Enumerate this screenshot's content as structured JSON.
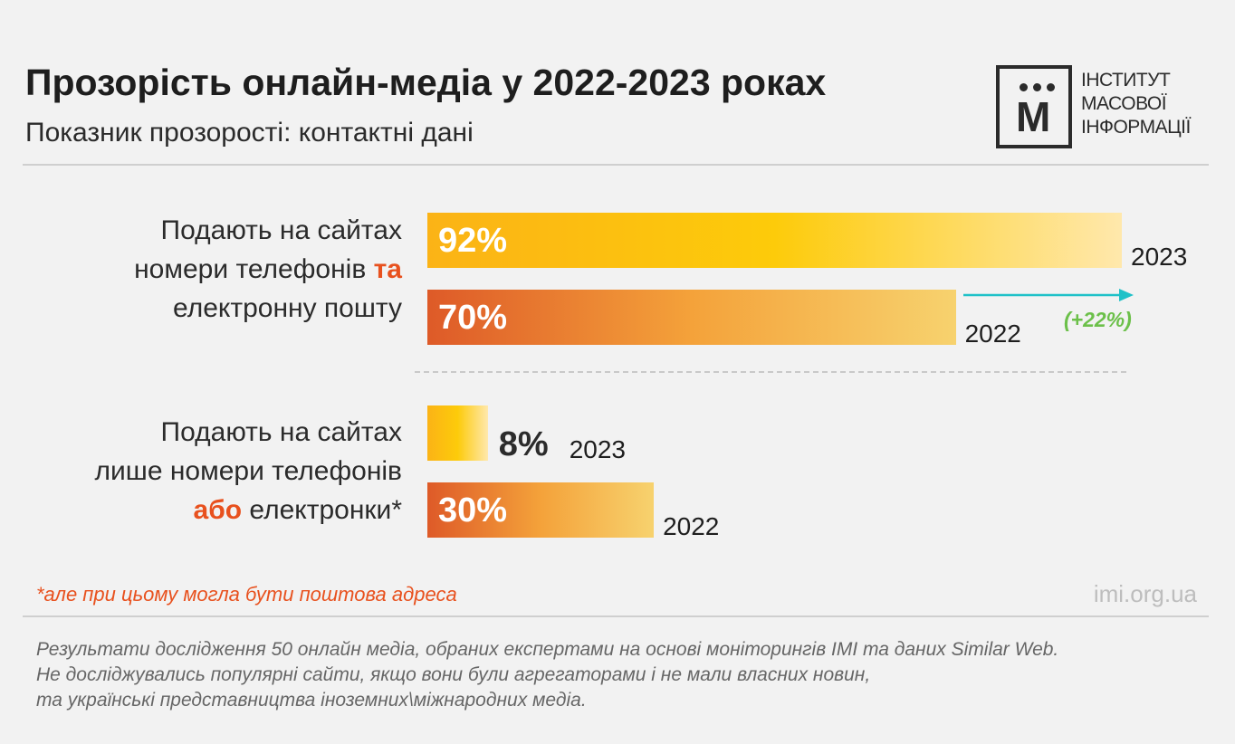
{
  "title": "Прозорість онлайн-медіа у 2022-2023 роках",
  "subtitle": "Показник прозорості: контактні дані",
  "logo": {
    "letter": "М",
    "lines": [
      "ІНСТИТУТ",
      "МАСОВОЇ",
      "ІНФОРМАЦІЇ"
    ]
  },
  "chart_data": {
    "type": "bar",
    "orientation": "horizontal",
    "categories": [
      {
        "label_lines": [
          {
            "text": "Подають на сайтах"
          },
          {
            "text": "номери телефонів ",
            "accent": "та"
          },
          {
            "text": "електронну пошту"
          }
        ],
        "bars": [
          {
            "year": "2023",
            "value": 92,
            "label": "92%"
          },
          {
            "year": "2022",
            "value": 70,
            "label": "70%"
          }
        ],
        "change_label": "(+22%)"
      },
      {
        "label_lines": [
          {
            "text": "Подають на сайтах"
          },
          {
            "text": "лише номери телефонів"
          },
          {
            "accent": "або",
            "text": " електронки*"
          }
        ],
        "bars": [
          {
            "year": "2023",
            "value": 8,
            "label": "8%"
          },
          {
            "year": "2022",
            "value": 30,
            "label": "30%"
          }
        ]
      }
    ],
    "xlim": [
      0,
      100
    ],
    "grid": false,
    "colors": {
      "2023_start": "#fbb316",
      "2023_end": "#ffe8ac",
      "2022_start": "#de5a28",
      "2022_end": "#f7d26e",
      "accent": "#e8511e",
      "change": "#6cc04a",
      "arrow": "#1fc1c8"
    }
  },
  "footnote": "*але при цьому могла бути поштова адреса",
  "site": "imi.org.ua",
  "notes": [
    "Результати дослідження 50 онлайн медіа, обраних експертами на основі моніторингів IMI та даних Similar Web.",
    "Не досліджувались популярні сайти, якщо вони були агрегаторами і не мали власних новин,",
    "та українські представництва іноземних\\міжнародних медіа."
  ]
}
